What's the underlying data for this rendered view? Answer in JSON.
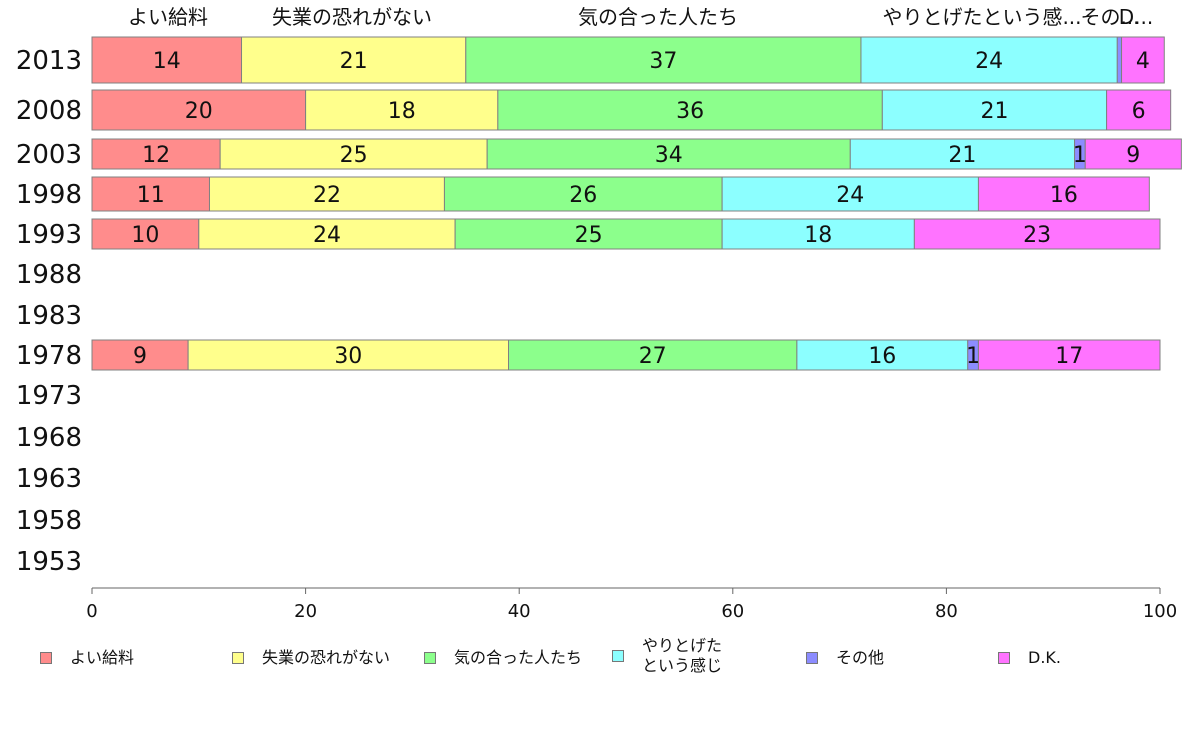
{
  "chart_data": {
    "type": "bar",
    "orientation": "horizontal",
    "stacked": true,
    "top_labels": [
      "よい給料",
      "失業の恐れがない",
      "気の合った人たち",
      "やりとげたという感...",
      "その...",
      "D..."
    ],
    "years": [
      "2013",
      "2008",
      "2003",
      "1998",
      "1993",
      "1988",
      "1983",
      "1978",
      "1973",
      "1968",
      "1963",
      "1958",
      "1953"
    ],
    "series": [
      {
        "name": "よい給料",
        "legend_label": "よい給料",
        "color": "#ff8c8c",
        "values": [
          14,
          20,
          12,
          11,
          10,
          null,
          null,
          9,
          null,
          null,
          null,
          null,
          null
        ]
      },
      {
        "name": "失業の恐れがない",
        "legend_label": "失業の恐れがない",
        "color": "#ffff8c",
        "values": [
          21,
          18,
          25,
          22,
          24,
          null,
          null,
          30,
          null,
          null,
          null,
          null,
          null
        ]
      },
      {
        "name": "気の合った人たち",
        "legend_label": "気の合った人たち",
        "color": "#8cff8c",
        "values": [
          37,
          36,
          34,
          26,
          25,
          null,
          null,
          27,
          null,
          null,
          null,
          null,
          null
        ]
      },
      {
        "name": "やりとげたという感じ",
        "legend_label": "やりとげた\nという感じ",
        "color": "#8cffff",
        "values": [
          24,
          21,
          21,
          24,
          18,
          null,
          null,
          16,
          null,
          null,
          null,
          null,
          null
        ]
      },
      {
        "name": "その他",
        "legend_label": "その他",
        "color": "#8c8cff",
        "values": [
          0.4,
          0,
          1,
          0,
          0,
          null,
          null,
          1,
          null,
          null,
          null,
          null,
          null
        ]
      },
      {
        "name": "D.K.",
        "legend_label": "D.K.",
        "color": "#ff73ff",
        "values": [
          4,
          6,
          9,
          16,
          23,
          null,
          null,
          17,
          null,
          null,
          null,
          null,
          null
        ]
      }
    ],
    "xlim": [
      0,
      100
    ],
    "xticks": [
      0,
      20,
      40,
      60,
      80,
      100
    ]
  }
}
